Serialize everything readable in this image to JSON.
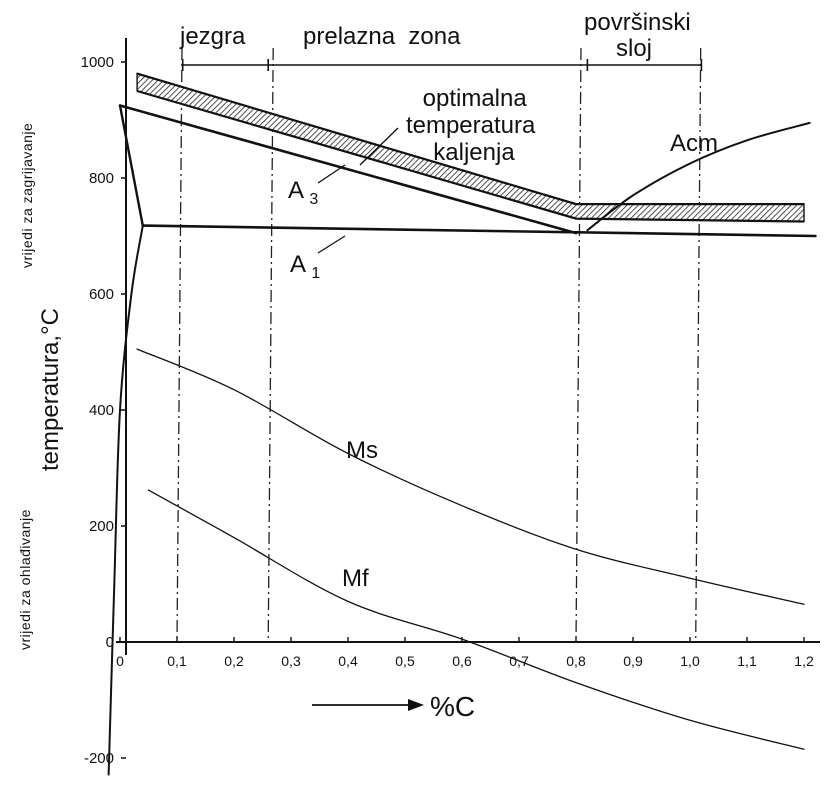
{
  "chart_data": {
    "type": "line",
    "xlabel": "%C",
    "ylabel": "temperatura,°C",
    "y_side_top": "vrijedi za zagrijavanje",
    "y_side_bottom": "vrijedi za ohlađivanje",
    "xlim": [
      0,
      1.22
    ],
    "ylim": [
      -200,
      1030
    ],
    "x_ticks": [
      "0",
      "0,1",
      "0,2",
      "0,3",
      "0,4",
      "0,5",
      "0,6",
      "0,7",
      "0,8",
      "0,9",
      "1,0",
      "1,1",
      "1,2"
    ],
    "y_ticks": [
      "1000",
      "800",
      "600",
      "400",
      "200",
      "0",
      "-200"
    ],
    "zones": [
      {
        "label": "jezgra",
        "x_start": 0.11,
        "x_end": 0.26
      },
      {
        "label": "prelazna  zona",
        "x_start": 0.26,
        "x_end": 0.82
      },
      {
        "label": "površinski",
        "label2": "sloj",
        "x_start": 0.82,
        "x_end": 1.02
      }
    ],
    "zone_dividers": [
      0.1,
      0.26,
      0.8,
      1.01
    ],
    "series": [
      {
        "name": "A3",
        "sub": "3",
        "points": [
          [
            0.0,
            925
          ],
          [
            0.8,
            705
          ]
        ]
      },
      {
        "name": "A1",
        "sub": "1",
        "points": [
          [
            0.04,
            718
          ],
          [
            1.22,
            700
          ]
        ]
      },
      {
        "name": "Acm",
        "points": [
          [
            0.82,
            710
          ],
          [
            0.9,
            770
          ],
          [
            1.0,
            825
          ],
          [
            1.1,
            865
          ],
          [
            1.21,
            895
          ]
        ]
      },
      {
        "name": "Ms",
        "points": [
          [
            0.03,
            505
          ],
          [
            0.2,
            435
          ],
          [
            0.4,
            325
          ],
          [
            0.6,
            235
          ],
          [
            0.8,
            160
          ],
          [
            1.0,
            110
          ],
          [
            1.2,
            65
          ]
        ]
      },
      {
        "name": "Mf",
        "points": [
          [
            0.05,
            262
          ],
          [
            0.2,
            180
          ],
          [
            0.4,
            70
          ],
          [
            0.6,
            5
          ],
          [
            0.8,
            -70
          ],
          [
            1.0,
            -135
          ],
          [
            1.2,
            -185
          ]
        ]
      }
    ],
    "boundary_lines": [
      [
        [
          0.0,
          925
        ],
        [
          0.04,
          718
        ]
      ],
      [
        [
          0.04,
          718
        ],
        [
          0.02,
          600
        ],
        [
          0.0,
          400
        ],
        [
          -0.01,
          100
        ],
        [
          -0.02,
          -230
        ]
      ]
    ],
    "optimal_band": {
      "label": "optimalna temperatura kaljenja",
      "upper": [
        [
          0.03,
          980
        ],
        [
          0.8,
          755
        ],
        [
          1.2,
          755
        ]
      ],
      "lower": [
        [
          0.03,
          950
        ],
        [
          0.8,
          730
        ],
        [
          1.2,
          725
        ]
      ]
    }
  }
}
